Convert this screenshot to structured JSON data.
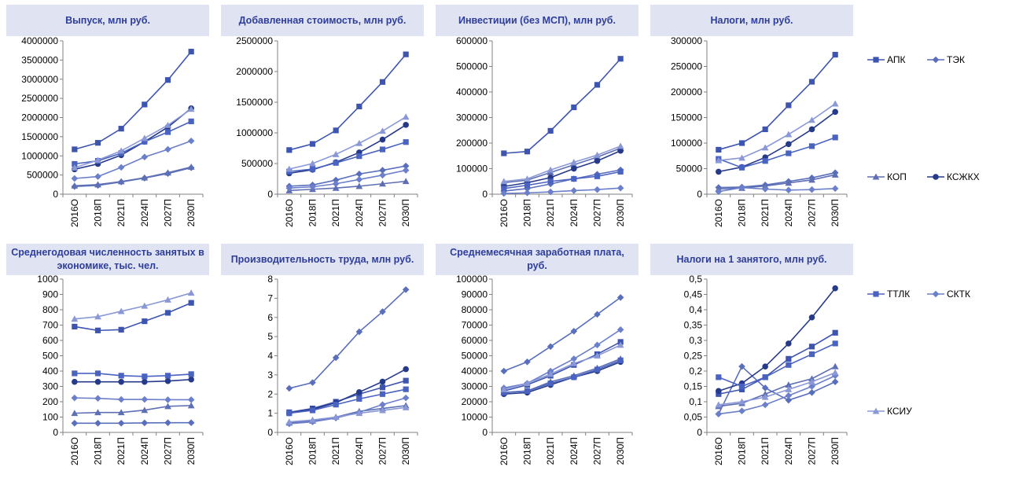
{
  "colors": {
    "АПК": "#3e55b0",
    "ТЭК": "#5a6fbc",
    "КОП": "#5e6fb4",
    "КСЖКХ": "#263a8a",
    "ТТЛК": "#4a63c0",
    "СКТК": "#6b7fca",
    "КСИУ": "#8a98d6",
    "title_bg": "#dfe3f2",
    "title_text": "#2e3d9a"
  },
  "legend": [
    {
      "name": "АПК",
      "marker": "square"
    },
    {
      "name": "ТЭК",
      "marker": "diamond"
    },
    {
      "name": "КОП",
      "marker": "triangle"
    },
    {
      "name": "КСЖКХ",
      "marker": "circle"
    },
    {
      "name": "ТТЛК",
      "marker": "square"
    },
    {
      "name": "СКТК",
      "marker": "diamond"
    },
    {
      "name": "КСИУ",
      "marker": "triangle"
    }
  ],
  "chart_data": [
    {
      "type": "line",
      "title": "Выпуск, млн руб.",
      "categories": [
        "2016О",
        "2018П",
        "2021П",
        "2024П",
        "2027П",
        "2030П"
      ],
      "ylim": [
        0,
        4000000
      ],
      "ytick_step": 500000,
      "yticks": [
        "0",
        "500000",
        "1000000",
        "1500000",
        "2000000",
        "2500000",
        "3000000",
        "3500000",
        "4000000"
      ],
      "series": [
        {
          "name": "АПК",
          "values": [
            1170000,
            1340000,
            1710000,
            2340000,
            2980000,
            3720000
          ]
        },
        {
          "name": "ТЭК",
          "values": [
            200000,
            230000,
            320000,
            420000,
            540000,
            690000
          ]
        },
        {
          "name": "КОП",
          "values": [
            220000,
            250000,
            330000,
            430000,
            560000,
            710000
          ]
        },
        {
          "name": "КСЖКХ",
          "values": [
            650000,
            790000,
            1020000,
            1370000,
            1750000,
            2240000
          ]
        },
        {
          "name": "ТТЛК",
          "values": [
            790000,
            870000,
            1070000,
            1370000,
            1620000,
            1900000
          ]
        },
        {
          "name": "СКТК",
          "values": [
            410000,
            460000,
            700000,
            970000,
            1170000,
            1390000
          ]
        },
        {
          "name": "КСИУ",
          "values": [
            690000,
            890000,
            1130000,
            1460000,
            1800000,
            2220000
          ]
        }
      ]
    },
    {
      "type": "line",
      "title": "Добавленная стоимость, млн руб.",
      "categories": [
        "2016О",
        "2018П",
        "2021П",
        "2024П",
        "2027П",
        "2030П"
      ],
      "ylim": [
        0,
        2500000
      ],
      "ytick_step": 500000,
      "yticks": [
        "0",
        "500000",
        "1000000",
        "1500000",
        "2000000",
        "2500000"
      ],
      "series": [
        {
          "name": "АПК",
          "values": [
            720000,
            820000,
            1040000,
            1430000,
            1830000,
            2280000
          ]
        },
        {
          "name": "ТЭК",
          "values": [
            130000,
            150000,
            230000,
            330000,
            390000,
            460000
          ]
        },
        {
          "name": "КОП",
          "values": [
            60000,
            80000,
            100000,
            130000,
            170000,
            210000
          ]
        },
        {
          "name": "КСЖКХ",
          "values": [
            340000,
            400000,
            520000,
            680000,
            890000,
            1130000
          ]
        },
        {
          "name": "ТТЛК",
          "values": [
            370000,
            410000,
            510000,
            620000,
            730000,
            850000
          ]
        },
        {
          "name": "СКТК",
          "values": [
            100000,
            120000,
            170000,
            240000,
            310000,
            390000
          ]
        },
        {
          "name": "КСИУ",
          "values": [
            410000,
            500000,
            650000,
            830000,
            1030000,
            1260000
          ]
        }
      ]
    },
    {
      "type": "line",
      "title": "Инвестиции (без МСП), млн руб.",
      "categories": [
        "2016О",
        "2018П",
        "2021П",
        "2024П",
        "2027П",
        "2030П"
      ],
      "ylim": [
        0,
        600000
      ],
      "ytick_step": 100000,
      "yticks": [
        "0",
        "100000",
        "200000",
        "300000",
        "400000",
        "500000",
        "600000"
      ],
      "series": [
        {
          "name": "АПК",
          "values": [
            160000,
            167000,
            248000,
            340000,
            428000,
            530000
          ]
        },
        {
          "name": "ТЭК",
          "values": [
            12000,
            22000,
            40000,
            60000,
            78000,
            95000
          ]
        },
        {
          "name": "КОП",
          "values": [
            45000,
            55000,
            85000,
            115000,
            145000,
            180000
          ]
        },
        {
          "name": "КСЖКХ",
          "values": [
            30000,
            45000,
            65000,
            100000,
            130000,
            170000
          ]
        },
        {
          "name": "ТТЛК",
          "values": [
            22000,
            35000,
            50000,
            60000,
            70000,
            88000
          ]
        },
        {
          "name": "СКТК",
          "values": [
            3000,
            5000,
            9000,
            14000,
            18000,
            24000
          ]
        },
        {
          "name": "КСИУ",
          "values": [
            50000,
            60000,
            95000,
            125000,
            153000,
            188000
          ]
        }
      ]
    },
    {
      "type": "line",
      "title": "Налоги, млн руб.",
      "categories": [
        "2016О",
        "2018П",
        "2021П",
        "2024П",
        "2027П",
        "2030П"
      ],
      "ylim": [
        0,
        300000
      ],
      "ytick_step": 50000,
      "yticks": [
        "0",
        "50000",
        "100000",
        "150000",
        "200000",
        "250000",
        "300000"
      ],
      "series": [
        {
          "name": "АПК",
          "values": [
            87000,
            100000,
            127000,
            174000,
            220000,
            273000
          ]
        },
        {
          "name": "ТЭК",
          "values": [
            13000,
            14000,
            18000,
            25000,
            32000,
            42000
          ]
        },
        {
          "name": "КОП",
          "values": [
            10000,
            12000,
            16000,
            22000,
            28000,
            38000
          ]
        },
        {
          "name": "КСЖКХ",
          "values": [
            44000,
            53000,
            72000,
            98000,
            127000,
            161000
          ]
        },
        {
          "name": "ТТЛК",
          "values": [
            69000,
            52000,
            65000,
            80000,
            94000,
            111000
          ]
        },
        {
          "name": "СКТК",
          "values": [
            5000,
            13000,
            10000,
            8000,
            9000,
            11000
          ]
        },
        {
          "name": "КСИУ",
          "values": [
            66000,
            71000,
            91000,
            117000,
            145000,
            177000
          ]
        }
      ]
    },
    {
      "type": "line",
      "title": "Среднегодовая численность занятых в экономике, тыс. чел.",
      "categories": [
        "2016О",
        "2018П",
        "2021П",
        "2024П",
        "2027П",
        "2030П"
      ],
      "ylim": [
        0,
        1000
      ],
      "ytick_step": 100,
      "yticks": [
        "0",
        "100",
        "200",
        "300",
        "400",
        "500",
        "600",
        "700",
        "800",
        "900",
        "1000"
      ],
      "series": [
        {
          "name": "АПК",
          "values": [
            690,
            665,
            670,
            725,
            780,
            845
          ]
        },
        {
          "name": "ТЭК",
          "values": [
            60,
            60,
            60,
            62,
            63,
            63
          ]
        },
        {
          "name": "КОП",
          "values": [
            125,
            130,
            130,
            145,
            170,
            175
          ]
        },
        {
          "name": "КСЖКХ",
          "values": [
            330,
            330,
            330,
            330,
            335,
            345
          ]
        },
        {
          "name": "ТТЛК",
          "values": [
            385,
            385,
            370,
            365,
            370,
            380
          ]
        },
        {
          "name": "СКТК",
          "values": [
            225,
            222,
            215,
            215,
            213,
            213
          ]
        },
        {
          "name": "КСИУ",
          "values": [
            740,
            755,
            790,
            825,
            865,
            910
          ]
        }
      ]
    },
    {
      "type": "line",
      "title": "Производительность труда, млн руб.",
      "categories": [
        "2016О",
        "2018П",
        "2021П",
        "2024П",
        "2027П",
        "2030П"
      ],
      "ylim": [
        0,
        8
      ],
      "ytick_step": 1,
      "yticks": [
        "0",
        "1",
        "2",
        "3",
        "4",
        "5",
        "6",
        "7",
        "8"
      ],
      "series": [
        {
          "name": "АПК",
          "values": [
            1.05,
            1.25,
            1.6,
            2.0,
            2.35,
            2.7
          ]
        },
        {
          "name": "ТЭК",
          "values": [
            2.3,
            2.6,
            3.9,
            5.25,
            6.3,
            7.45
          ]
        },
        {
          "name": "КОП",
          "values": [
            0.5,
            0.6,
            0.8,
            1.1,
            1.25,
            1.4
          ]
        },
        {
          "name": "КСЖКХ",
          "values": [
            1.0,
            1.2,
            1.55,
            2.1,
            2.65,
            3.3
          ]
        },
        {
          "name": "ТТЛК",
          "values": [
            1.0,
            1.15,
            1.45,
            1.75,
            2.0,
            2.25
          ]
        },
        {
          "name": "СКТК",
          "values": [
            0.45,
            0.55,
            0.75,
            1.05,
            1.45,
            1.8
          ]
        },
        {
          "name": "КСИУ",
          "values": [
            0.55,
            0.65,
            0.8,
            1.0,
            1.15,
            1.3
          ]
        }
      ]
    },
    {
      "type": "line",
      "title": "Среднемесячная заработная плата, руб.",
      "categories": [
        "2016О",
        "2018П",
        "2021П",
        "2024П",
        "2027П",
        "2030П"
      ],
      "ylim": [
        0,
        100000
      ],
      "ytick_step": 10000,
      "yticks": [
        "0",
        "10000",
        "20000",
        "30000",
        "40000",
        "50000",
        "60000",
        "70000",
        "80000",
        "90000",
        "100000"
      ],
      "series": [
        {
          "name": "АПК",
          "values": [
            27000,
            31000,
            37000,
            44000,
            51000,
            59000
          ]
        },
        {
          "name": "ТЭК",
          "values": [
            40000,
            46000,
            56000,
            66000,
            77000,
            88000
          ]
        },
        {
          "name": "КОП",
          "values": [
            26000,
            27000,
            33000,
            37000,
            42000,
            48000
          ]
        },
        {
          "name": "КСЖКХ",
          "values": [
            25000,
            26000,
            31000,
            36000,
            40000,
            46000
          ]
        },
        {
          "name": "ТТЛК",
          "values": [
            26000,
            27000,
            32000,
            36000,
            41000,
            47000
          ]
        },
        {
          "name": "СКТК",
          "values": [
            29000,
            32000,
            40000,
            48000,
            57000,
            67000
          ]
        },
        {
          "name": "КСИУ",
          "values": [
            28000,
            32000,
            38000,
            45000,
            50000,
            57000
          ]
        }
      ]
    },
    {
      "type": "line",
      "title": "Налоги на 1 занятого, млн руб.",
      "categories": [
        "2016О",
        "2018П",
        "2021П",
        "2024П",
        "2027П",
        "2030П"
      ],
      "ylim": [
        0,
        0.5
      ],
      "ytick_step": 0.05,
      "yticks": [
        "0",
        "0,05",
        "0,1",
        "0,15",
        "0,2",
        "0,25",
        "0,3",
        "0,35",
        "0,4",
        "0,45",
        "0,5"
      ],
      "series": [
        {
          "name": "АПК",
          "values": [
            0.125,
            0.14,
            0.18,
            0.24,
            0.28,
            0.325
          ]
        },
        {
          "name": "ТЭК",
          "values": [
            0.06,
            0.215,
            0.145,
            0.105,
            0.13,
            0.165
          ]
        },
        {
          "name": "КОП",
          "values": [
            0.085,
            0.095,
            0.125,
            0.155,
            0.175,
            0.215
          ]
        },
        {
          "name": "КСЖКХ",
          "values": [
            0.135,
            0.16,
            0.215,
            0.29,
            0.375,
            0.47
          ]
        },
        {
          "name": "ТТЛК",
          "values": [
            0.18,
            0.15,
            0.18,
            0.22,
            0.255,
            0.29
          ]
        },
        {
          "name": "СКТК",
          "values": [
            0.06,
            0.07,
            0.09,
            0.12,
            0.15,
            0.185
          ]
        },
        {
          "name": "КСИУ",
          "values": [
            0.09,
            0.1,
            0.115,
            0.14,
            0.165,
            0.195
          ]
        }
      ]
    }
  ]
}
